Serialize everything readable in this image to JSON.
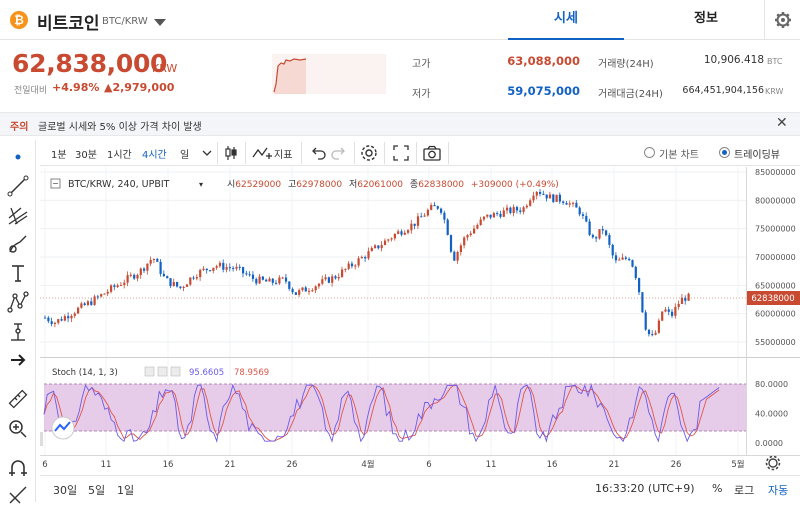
{
  "header": {
    "coin_symbol": "₿",
    "coin_name": "비트코인",
    "pair": "BTC/KRW",
    "tabs": [
      "시세",
      "정보"
    ]
  },
  "price": {
    "current": "62,838,000",
    "unit": "KRW",
    "prev_label": "전일대비",
    "change_pct": "+4.98%",
    "change_amt": "▲2,979,000"
  },
  "stats": {
    "high_label": "고가",
    "high": "63,088,000",
    "low_label": "저가",
    "low": "59,075,000",
    "volume_label": "거래량(24H)",
    "volume": "10,906.418",
    "volume_unit": "BTC",
    "amount_label": "거래대금(24H)",
    "amount": "664,451,904,156",
    "amount_unit": "KRW"
  },
  "notice": {
    "tag": "주의",
    "text": "글로벌 시세와 5% 이상 가격 차이 발생",
    "close": "✕"
  },
  "toolbar": {
    "intervals": [
      "1분",
      "30분",
      "1시간",
      "4시간",
      "일"
    ],
    "active_interval": "4시간",
    "indicator_label": "지표",
    "basic_chart": "기본 차트",
    "tradingview": "트레이딩뷰"
  },
  "legend": {
    "symbol": "BTC/KRW, 240, UPBIT",
    "open_label": "시",
    "open": "62529000",
    "high_label": "고",
    "high": "62978000",
    "low_label": "저",
    "low": "62061000",
    "close_label": "종",
    "close": "62838000",
    "change": "+309000 (+0.49%)"
  },
  "stoch": {
    "label": "Stoch (14, 1, 3)",
    "k": "95.6605",
    "d": "78.9569"
  },
  "price_axis": [
    "85000000",
    "80000000",
    "75000000",
    "70000000",
    "65000000",
    "60000000",
    "55000000"
  ],
  "current_price_tag": "62838000",
  "stoch_axis": [
    "80.0000",
    "40.0000",
    "0.0000"
  ],
  "time_axis": [
    "6",
    "11",
    "16",
    "21",
    "26",
    "4월",
    "6",
    "11",
    "16",
    "21",
    "26",
    "5월"
  ],
  "bottom": {
    "ranges": [
      "30일",
      "5일",
      "1일"
    ],
    "time": "16:33:20 (UTC+9)",
    "percent": "%",
    "log": "로그",
    "auto": "자동"
  },
  "colors": {
    "up": "#c84a31",
    "down": "#1261c4",
    "stoch_k": "#6e5ae8",
    "stoch_d": "#e0564a",
    "stoch_band": "#d9b0dd"
  }
}
